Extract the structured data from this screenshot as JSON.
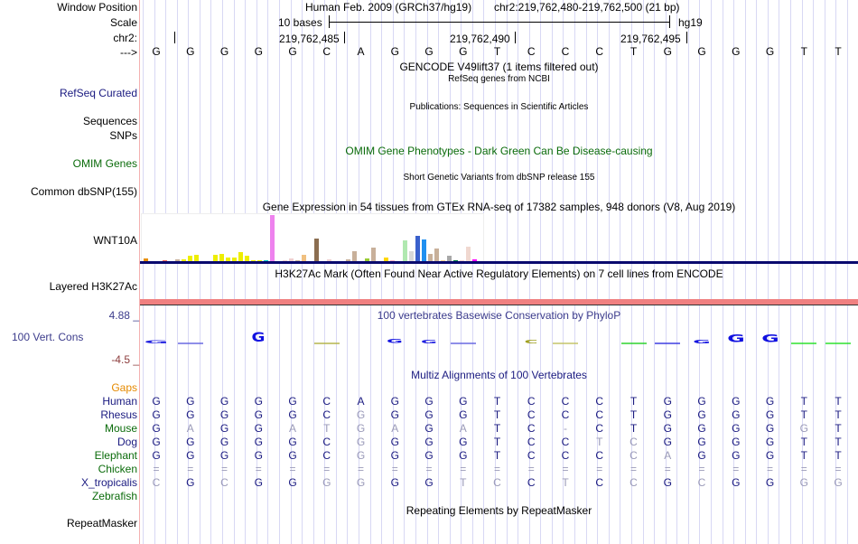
{
  "header": {
    "window_position_label": "Window Position",
    "scale_label": "Scale",
    "chr_label": "chr2:",
    "strand_label": "--->",
    "assembly_title": "Human Feb. 2009 (GRCh37/hg19)",
    "position": "chr2:219,762,480-219,762,500 (21 bp)",
    "scale_text": "10 bases",
    "scale_db": "hg19",
    "coord_ticks": [
      "219,762,485",
      "219,762,490",
      "219,762,495"
    ]
  },
  "sequence": [
    "G",
    "G",
    "G",
    "G",
    "G",
    "C",
    "A",
    "G",
    "G",
    "G",
    "T",
    "C",
    "C",
    "C",
    "T",
    "G",
    "G",
    "G",
    "G",
    "T",
    "T"
  ],
  "tracks": {
    "gencode_title": "GENCODE V49lift37 (1 items filtered out)",
    "refseq_subtitle": "RefSeq genes from NCBI",
    "refseq_label": "RefSeq Curated",
    "publications_title": "Publications: Sequences in Scientific Articles",
    "sequences_label": "Sequences",
    "snps_label": "SNPs",
    "omim_title": "OMIM Gene Phenotypes - Dark Green Can Be Disease-causing",
    "omim_label": "OMIM Genes",
    "dbsnp_title": "Short Genetic Variants from dbSNP release 155",
    "dbsnp_label": "Common dbSNP(155)",
    "gtex_title": "Gene Expression in 54 tissues from GTEx RNA-seq of 17382 samples, 948 donors (V8, Aug 2019)",
    "gtex_label": "WNT10A",
    "h3k27ac_title": "H3K27Ac Mark (Often Found Near Active Regulatory Elements) on 7 cell lines from ENCODE",
    "h3k27ac_label": "Layered H3K27Ac",
    "cons_title": "100 vertebrates Basewise Conservation by PhyloP",
    "cons_label": "100 Vert. Cons",
    "cons_max": "4.88 _",
    "cons_min": "-4.5 _",
    "multiz_title": "Multiz Alignments of 100 Vertebrates",
    "repeat_title": "Repeating Elements by RepeatMasker",
    "repeat_label": "RepeatMasker"
  },
  "colors": {
    "label_blue": "#1a1a80",
    "label_green": "#0a6b0a",
    "gaps_orange": "#e68a00",
    "cons_blue": "#3c3c8c",
    "cons_min": "#8c3c3c",
    "h3k27ac_bar": "#f08080",
    "gtex_baseline": "#0a0a6e"
  },
  "gtex_bars": [
    {
      "v": 0.07,
      "c": "#e8900a"
    },
    {
      "v": 0,
      "c": "#ffffff"
    },
    {
      "v": 0,
      "c": "#ffffff"
    },
    {
      "v": 0.03,
      "c": "#ee6655"
    },
    {
      "v": 0,
      "c": "#ffffff"
    },
    {
      "v": 0.06,
      "c": "#c8b09a"
    },
    {
      "v": 0.05,
      "c": "#eeee00"
    },
    {
      "v": 0.14,
      "c": "#eeee00"
    },
    {
      "v": 0.15,
      "c": "#eeee00"
    },
    {
      "v": 0,
      "c": "#ffffff"
    },
    {
      "v": 0,
      "c": "#ffffff"
    },
    {
      "v": 0.15,
      "c": "#eeee00"
    },
    {
      "v": 0.17,
      "c": "#eeee00"
    },
    {
      "v": 0.1,
      "c": "#eeee00"
    },
    {
      "v": 0.1,
      "c": "#eeee00"
    },
    {
      "v": 0.21,
      "c": "#eeee00"
    },
    {
      "v": 0.14,
      "c": "#eeee00"
    },
    {
      "v": 0.02,
      "c": "#eeee00"
    },
    {
      "v": 0.02,
      "c": "#eeee00"
    },
    {
      "v": 0.04,
      "c": "#00cccc"
    },
    {
      "v": 1.0,
      "c": "#ee82ee"
    },
    {
      "v": 0,
      "c": "#ffffff"
    },
    {
      "v": 0.04,
      "c": "#f0d0d0"
    },
    {
      "v": 0.07,
      "c": "#f0d0d0"
    },
    {
      "v": 0.02,
      "c": "#c8b09a"
    },
    {
      "v": 0.15,
      "c": "#f0c080"
    },
    {
      "v": 0,
      "c": "#ffffff"
    },
    {
      "v": 0.5,
      "c": "#8b6e50"
    },
    {
      "v": 0,
      "c": "#ffffff"
    },
    {
      "v": 0.05,
      "c": "#f0d0d0"
    },
    {
      "v": 0,
      "c": "#ffffff"
    },
    {
      "v": 0,
      "c": "#ffffff"
    },
    {
      "v": 0.05,
      "c": "#c8b09a"
    },
    {
      "v": 0.24,
      "c": "#c8b09a"
    },
    {
      "v": 0,
      "c": "#ffffff"
    },
    {
      "v": 0.07,
      "c": "#99cc33"
    },
    {
      "v": 0.3,
      "c": "#c8b09a"
    },
    {
      "v": 0,
      "c": "#ffffff"
    },
    {
      "v": 0.09,
      "c": "#ffd700"
    },
    {
      "v": 0.02,
      "c": "#ffb0c8"
    },
    {
      "v": 0,
      "c": "#ffffff"
    },
    {
      "v": 0.47,
      "c": "#b0e8b0"
    },
    {
      "v": 0.24,
      "c": "#d8d8d8"
    },
    {
      "v": 0.55,
      "c": "#3a60cc"
    },
    {
      "v": 0.49,
      "c": "#2090f0"
    },
    {
      "v": 0.18,
      "c": "#c8b09a"
    },
    {
      "v": 0.28,
      "c": "#c8b09a"
    },
    {
      "v": 0.03,
      "c": "#ffd090"
    },
    {
      "v": 0.14,
      "c": "#a8a8a8"
    },
    {
      "v": 0.04,
      "c": "#008040"
    },
    {
      "v": 0.02,
      "c": "#f0d0d0"
    },
    {
      "v": 0.32,
      "c": "#f0d8d0"
    },
    {
      "v": 0.05,
      "c": "#ff00ff"
    }
  ],
  "conservation": [
    {
      "b": "G",
      "h": 0.3,
      "c": "#2020e0",
      "w": 1.8
    },
    {
      "b": "",
      "h": 0.05,
      "c": "#6060e0",
      "w": 1
    },
    {
      "b": "",
      "h": 0,
      "c": "",
      "w": 1
    },
    {
      "b": "G",
      "h": 1.0,
      "c": "#1010e0",
      "w": 1
    },
    {
      "b": "",
      "h": 0,
      "c": "",
      "w": 1
    },
    {
      "b": "",
      "h": 0.05,
      "c": "#b0b040",
      "w": 1
    },
    {
      "b": "",
      "h": 0,
      "c": "",
      "w": 1
    },
    {
      "b": "G",
      "h": 0.45,
      "c": "#1515e0",
      "w": 1.2
    },
    {
      "b": "G",
      "h": 0.35,
      "c": "#2020e0",
      "w": 1.2
    },
    {
      "b": "",
      "h": 0.05,
      "c": "#6060e0",
      "w": 1
    },
    {
      "b": "",
      "h": 0,
      "c": "",
      "w": 1
    },
    {
      "b": "C",
      "h": 0.4,
      "c": "#a0a020",
      "w": 1.1
    },
    {
      "b": "",
      "h": 0.05,
      "c": "#c0c060",
      "w": 1
    },
    {
      "b": "",
      "h": 0,
      "c": "",
      "w": 1
    },
    {
      "b": "",
      "h": 0.06,
      "c": "#20d020",
      "w": 1
    },
    {
      "b": "",
      "h": 0.05,
      "c": "#3030e0",
      "w": 1
    },
    {
      "b": "G",
      "h": 0.4,
      "c": "#1010e0",
      "w": 1.3
    },
    {
      "b": "G",
      "h": 0.85,
      "c": "#1010e0",
      "w": 1.3
    },
    {
      "b": "G",
      "h": 0.85,
      "c": "#1010e0",
      "w": 1.3
    },
    {
      "b": "",
      "h": 0.04,
      "c": "#20e020",
      "w": 1
    },
    {
      "b": "",
      "h": 0.04,
      "c": "#20e020",
      "w": 1
    }
  ],
  "alignment": {
    "gaps_label": "Gaps",
    "species": [
      {
        "name": "Human",
        "color": "#1a1a80",
        "seq": [
          "G",
          "G",
          "G",
          "G",
          "G",
          "C",
          "A",
          "G",
          "G",
          "G",
          "T",
          "C",
          "C",
          "C",
          "T",
          "G",
          "G",
          "G",
          "G",
          "T",
          "T"
        ],
        "dim": [
          0,
          0,
          0,
          0,
          0,
          0,
          0,
          0,
          0,
          0,
          0,
          0,
          0,
          0,
          0,
          0,
          0,
          0,
          0,
          0,
          0
        ]
      },
      {
        "name": "Rhesus",
        "color": "#1a1a80",
        "seq": [
          "G",
          "G",
          "G",
          "G",
          "G",
          "C",
          "G",
          "G",
          "G",
          "G",
          "T",
          "C",
          "C",
          "C",
          "T",
          "G",
          "G",
          "G",
          "G",
          "T",
          "T"
        ],
        "dim": [
          0,
          0,
          0,
          0,
          0,
          0,
          1,
          0,
          0,
          0,
          0,
          0,
          0,
          0,
          0,
          0,
          0,
          0,
          0,
          0,
          0
        ]
      },
      {
        "name": "Mouse",
        "color": "#0a6b0a",
        "seq": [
          "G",
          "A",
          "G",
          "G",
          "A",
          "T",
          "G",
          "A",
          "G",
          "A",
          "T",
          "C",
          "-",
          "C",
          "T",
          "G",
          "G",
          "G",
          "G",
          "G",
          "T"
        ],
        "dim": [
          0,
          1,
          0,
          0,
          1,
          1,
          1,
          1,
          0,
          1,
          0,
          0,
          1,
          0,
          0,
          0,
          0,
          0,
          0,
          1,
          0
        ]
      },
      {
        "name": "Dog",
        "color": "#1a1a80",
        "seq": [
          "G",
          "G",
          "G",
          "G",
          "G",
          "C",
          "G",
          "G",
          "G",
          "G",
          "T",
          "C",
          "C",
          "T",
          "C",
          "G",
          "G",
          "G",
          "G",
          "T",
          "T"
        ],
        "dim": [
          0,
          0,
          0,
          0,
          0,
          0,
          1,
          0,
          0,
          0,
          0,
          0,
          0,
          1,
          1,
          0,
          0,
          0,
          0,
          0,
          0
        ]
      },
      {
        "name": "Elephant",
        "color": "#0a6b0a",
        "seq": [
          "G",
          "G",
          "G",
          "G",
          "G",
          "C",
          "G",
          "G",
          "G",
          "G",
          "T",
          "C",
          "C",
          "C",
          "C",
          "A",
          "G",
          "G",
          "G",
          "T",
          "T"
        ],
        "dim": [
          0,
          0,
          0,
          0,
          0,
          0,
          1,
          0,
          0,
          0,
          0,
          0,
          0,
          0,
          1,
          1,
          0,
          0,
          0,
          0,
          0
        ]
      },
      {
        "name": "Chicken",
        "color": "#0a6b0a",
        "seq": [
          "=",
          "=",
          "=",
          "=",
          "=",
          "=",
          "=",
          "=",
          "=",
          "=",
          "=",
          "=",
          "=",
          "=",
          "=",
          "=",
          "=",
          "=",
          "=",
          "=",
          "="
        ],
        "dim": [
          1,
          1,
          1,
          1,
          1,
          1,
          1,
          1,
          1,
          1,
          1,
          1,
          1,
          1,
          1,
          1,
          1,
          1,
          1,
          1,
          1
        ]
      },
      {
        "name": "X_tropicalis",
        "color": "#1a1a80",
        "seq": [
          "C",
          "G",
          "C",
          "G",
          "G",
          "G",
          "G",
          "G",
          "G",
          "T",
          "C",
          "C",
          "T",
          "C",
          "C",
          "G",
          "C",
          "G",
          "G",
          "G",
          "G"
        ],
        "dim": [
          1,
          0,
          1,
          0,
          0,
          1,
          1,
          0,
          0,
          1,
          1,
          0,
          1,
          0,
          1,
          0,
          1,
          0,
          0,
          1,
          1
        ]
      },
      {
        "name": "Zebrafish",
        "color": "#0a6b0a",
        "seq": [],
        "dim": []
      }
    ]
  }
}
